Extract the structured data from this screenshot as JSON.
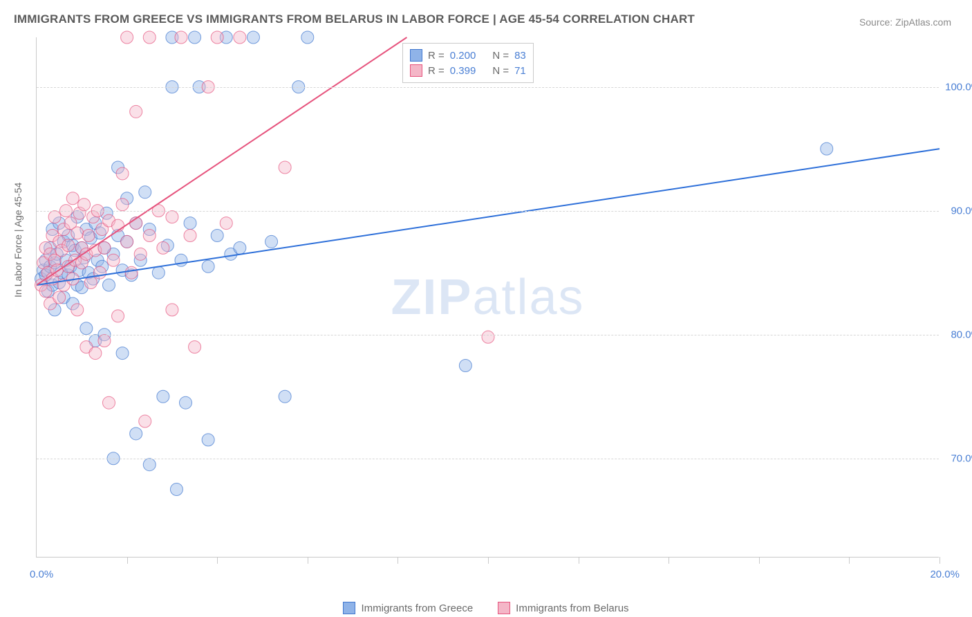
{
  "title": "IMMIGRANTS FROM GREECE VS IMMIGRANTS FROM BELARUS IN LABOR FORCE | AGE 45-54 CORRELATION CHART",
  "source": "Source: ZipAtlas.com",
  "watermark_zip": "ZIP",
  "watermark_atlas": "atlas",
  "y_axis_title": "In Labor Force | Age 45-54",
  "chart": {
    "type": "scatter",
    "xlim": [
      0,
      20
    ],
    "ylim": [
      62,
      104
    ],
    "x_ticks": [
      0,
      2,
      4,
      6,
      8,
      10,
      12,
      14,
      16,
      18,
      20
    ],
    "x_label_start": "0.0%",
    "x_label_end": "20.0%",
    "y_gridlines": [
      70,
      80,
      90,
      100
    ],
    "y_labels": [
      "70.0%",
      "80.0%",
      "90.0%",
      "100.0%"
    ],
    "background_color": "#ffffff",
    "grid_color": "#d6d6d6",
    "axis_color": "#c9c9c9",
    "marker_radius": 9,
    "marker_opacity": 0.42,
    "marker_stroke_opacity": 0.7,
    "line_width": 2
  },
  "series": [
    {
      "name": "Immigrants from Greece",
      "fill": "#8fb3e8",
      "stroke": "#3f76cf",
      "line_color": "#2d6fd9",
      "R": "0.200",
      "N": "83",
      "trend": {
        "x1": 0,
        "y1": 84,
        "x2": 20,
        "y2": 95
      },
      "points": [
        [
          0.1,
          84.5
        ],
        [
          0.15,
          85.2
        ],
        [
          0.2,
          84.8
        ],
        [
          0.2,
          86.0
        ],
        [
          0.25,
          83.5
        ],
        [
          0.3,
          85.5
        ],
        [
          0.3,
          87.0
        ],
        [
          0.35,
          84.0
        ],
        [
          0.35,
          88.5
        ],
        [
          0.4,
          85.8
        ],
        [
          0.4,
          82.0
        ],
        [
          0.45,
          86.5
        ],
        [
          0.5,
          84.2
        ],
        [
          0.5,
          89.0
        ],
        [
          0.55,
          85.0
        ],
        [
          0.6,
          87.5
        ],
        [
          0.6,
          83.0
        ],
        [
          0.65,
          86.0
        ],
        [
          0.7,
          84.8
        ],
        [
          0.7,
          88.0
        ],
        [
          0.75,
          85.5
        ],
        [
          0.8,
          87.2
        ],
        [
          0.8,
          82.5
        ],
        [
          0.85,
          86.8
        ],
        [
          0.9,
          84.0
        ],
        [
          0.9,
          89.5
        ],
        [
          0.95,
          85.2
        ],
        [
          1.0,
          87.0
        ],
        [
          1.0,
          83.8
        ],
        [
          1.05,
          86.2
        ],
        [
          1.1,
          88.5
        ],
        [
          1.1,
          80.5
        ],
        [
          1.15,
          85.0
        ],
        [
          1.2,
          87.8
        ],
        [
          1.25,
          84.5
        ],
        [
          1.3,
          89.0
        ],
        [
          1.3,
          79.5
        ],
        [
          1.35,
          86.0
        ],
        [
          1.4,
          88.2
        ],
        [
          1.45,
          85.5
        ],
        [
          1.5,
          87.0
        ],
        [
          1.5,
          80.0
        ],
        [
          1.55,
          89.8
        ],
        [
          1.6,
          84.0
        ],
        [
          1.7,
          86.5
        ],
        [
          1.7,
          70.0
        ],
        [
          1.8,
          88.0
        ],
        [
          1.8,
          93.5
        ],
        [
          1.9,
          85.2
        ],
        [
          1.9,
          78.5
        ],
        [
          2.0,
          87.5
        ],
        [
          2.0,
          91.0
        ],
        [
          2.1,
          84.8
        ],
        [
          2.2,
          72.0
        ],
        [
          2.2,
          89.0
        ],
        [
          2.3,
          86.0
        ],
        [
          2.4,
          91.5
        ],
        [
          2.5,
          69.5
        ],
        [
          2.5,
          88.5
        ],
        [
          2.7,
          85.0
        ],
        [
          2.8,
          75.0
        ],
        [
          2.9,
          87.2
        ],
        [
          3.0,
          100.0
        ],
        [
          3.0,
          104.0
        ],
        [
          3.1,
          67.5
        ],
        [
          3.2,
          86.0
        ],
        [
          3.3,
          74.5
        ],
        [
          3.4,
          89.0
        ],
        [
          3.5,
          104.0
        ],
        [
          3.6,
          100.0
        ],
        [
          3.8,
          71.5
        ],
        [
          3.8,
          85.5
        ],
        [
          4.0,
          88.0
        ],
        [
          4.2,
          104.0
        ],
        [
          4.3,
          86.5
        ],
        [
          4.5,
          87.0
        ],
        [
          4.8,
          104.0
        ],
        [
          5.2,
          87.5
        ],
        [
          5.5,
          75.0
        ],
        [
          5.8,
          100.0
        ],
        [
          6.0,
          104.0
        ],
        [
          9.5,
          77.5
        ],
        [
          17.5,
          95.0
        ]
      ]
    },
    {
      "name": "Immigrants from Belarus",
      "fill": "#f4b6c7",
      "stroke": "#e6537d",
      "line_color": "#e6537d",
      "R": "0.399",
      "N": "71",
      "trend": {
        "x1": 0,
        "y1": 84,
        "x2": 8.2,
        "y2": 104
      },
      "points": [
        [
          0.1,
          84.0
        ],
        [
          0.15,
          85.8
        ],
        [
          0.2,
          83.5
        ],
        [
          0.2,
          87.0
        ],
        [
          0.25,
          85.0
        ],
        [
          0.3,
          86.5
        ],
        [
          0.3,
          82.5
        ],
        [
          0.35,
          88.0
        ],
        [
          0.35,
          84.5
        ],
        [
          0.4,
          86.0
        ],
        [
          0.4,
          89.5
        ],
        [
          0.45,
          85.2
        ],
        [
          0.5,
          87.5
        ],
        [
          0.5,
          83.0
        ],
        [
          0.55,
          86.8
        ],
        [
          0.6,
          88.5
        ],
        [
          0.6,
          84.0
        ],
        [
          0.65,
          90.0
        ],
        [
          0.7,
          85.5
        ],
        [
          0.7,
          87.2
        ],
        [
          0.75,
          89.0
        ],
        [
          0.8,
          84.5
        ],
        [
          0.8,
          91.0
        ],
        [
          0.85,
          86.0
        ],
        [
          0.9,
          88.2
        ],
        [
          0.9,
          82.0
        ],
        [
          0.95,
          89.8
        ],
        [
          1.0,
          85.8
        ],
        [
          1.0,
          87.0
        ],
        [
          1.05,
          90.5
        ],
        [
          1.1,
          86.5
        ],
        [
          1.1,
          79.0
        ],
        [
          1.15,
          88.0
        ],
        [
          1.2,
          84.2
        ],
        [
          1.25,
          89.5
        ],
        [
          1.3,
          86.8
        ],
        [
          1.3,
          78.5
        ],
        [
          1.35,
          90.0
        ],
        [
          1.4,
          85.0
        ],
        [
          1.45,
          88.5
        ],
        [
          1.5,
          79.5
        ],
        [
          1.5,
          87.0
        ],
        [
          1.6,
          89.2
        ],
        [
          1.6,
          74.5
        ],
        [
          1.7,
          86.0
        ],
        [
          1.8,
          88.8
        ],
        [
          1.8,
          81.5
        ],
        [
          1.9,
          90.5
        ],
        [
          1.9,
          93.0
        ],
        [
          2.0,
          87.5
        ],
        [
          2.0,
          104.0
        ],
        [
          2.1,
          85.0
        ],
        [
          2.2,
          89.0
        ],
        [
          2.2,
          98.0
        ],
        [
          2.3,
          86.5
        ],
        [
          2.4,
          73.0
        ],
        [
          2.5,
          88.0
        ],
        [
          2.5,
          104.0
        ],
        [
          2.7,
          90.0
        ],
        [
          2.8,
          87.0
        ],
        [
          3.0,
          89.5
        ],
        [
          3.0,
          82.0
        ],
        [
          3.2,
          104.0
        ],
        [
          3.4,
          88.0
        ],
        [
          3.5,
          79.0
        ],
        [
          3.8,
          100.0
        ],
        [
          4.0,
          104.0
        ],
        [
          4.2,
          89.0
        ],
        [
          4.5,
          104.0
        ],
        [
          5.5,
          93.5
        ],
        [
          10.0,
          79.8
        ]
      ]
    }
  ],
  "legend_bottom": {
    "items": [
      {
        "label": "Immigrants from Greece",
        "fill": "#8fb3e8",
        "stroke": "#3f76cf"
      },
      {
        "label": "Immigrants from Belarus",
        "fill": "#f4b6c7",
        "stroke": "#e6537d"
      }
    ]
  },
  "stat_labels": {
    "R": "R =",
    "N": "N ="
  }
}
